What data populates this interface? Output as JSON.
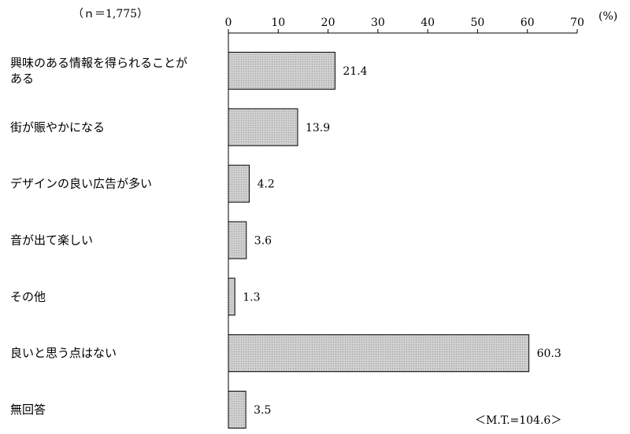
{
  "chart_data": {
    "type": "bar",
    "orientation": "horizontal",
    "sample_note": "（ｎ＝1,775）",
    "unit_label": "(%)",
    "categories": [
      [
        "興味のある情報を得られることが",
        "ある"
      ],
      [
        "街が賑やかになる"
      ],
      [
        "デザインの良い広告が多い"
      ],
      [
        "音が出て楽しい"
      ],
      [
        "その他"
      ],
      [
        "良いと思う点はない"
      ],
      [
        "無回答"
      ]
    ],
    "values": [
      21.4,
      13.9,
      4.2,
      3.6,
      1.3,
      60.3,
      3.5
    ],
    "value_labels": [
      "21.4",
      "13.9",
      "4.2",
      "3.6",
      "1.3",
      "60.3",
      "3.5"
    ],
    "xlim": [
      0,
      70
    ],
    "ticks": [
      0,
      10,
      20,
      30,
      40,
      50,
      60,
      70
    ],
    "footnote": "＜M.T.=104.6＞",
    "grid": false,
    "bar_color": "#cfcfcf",
    "bar_edge_color": "#000000"
  }
}
